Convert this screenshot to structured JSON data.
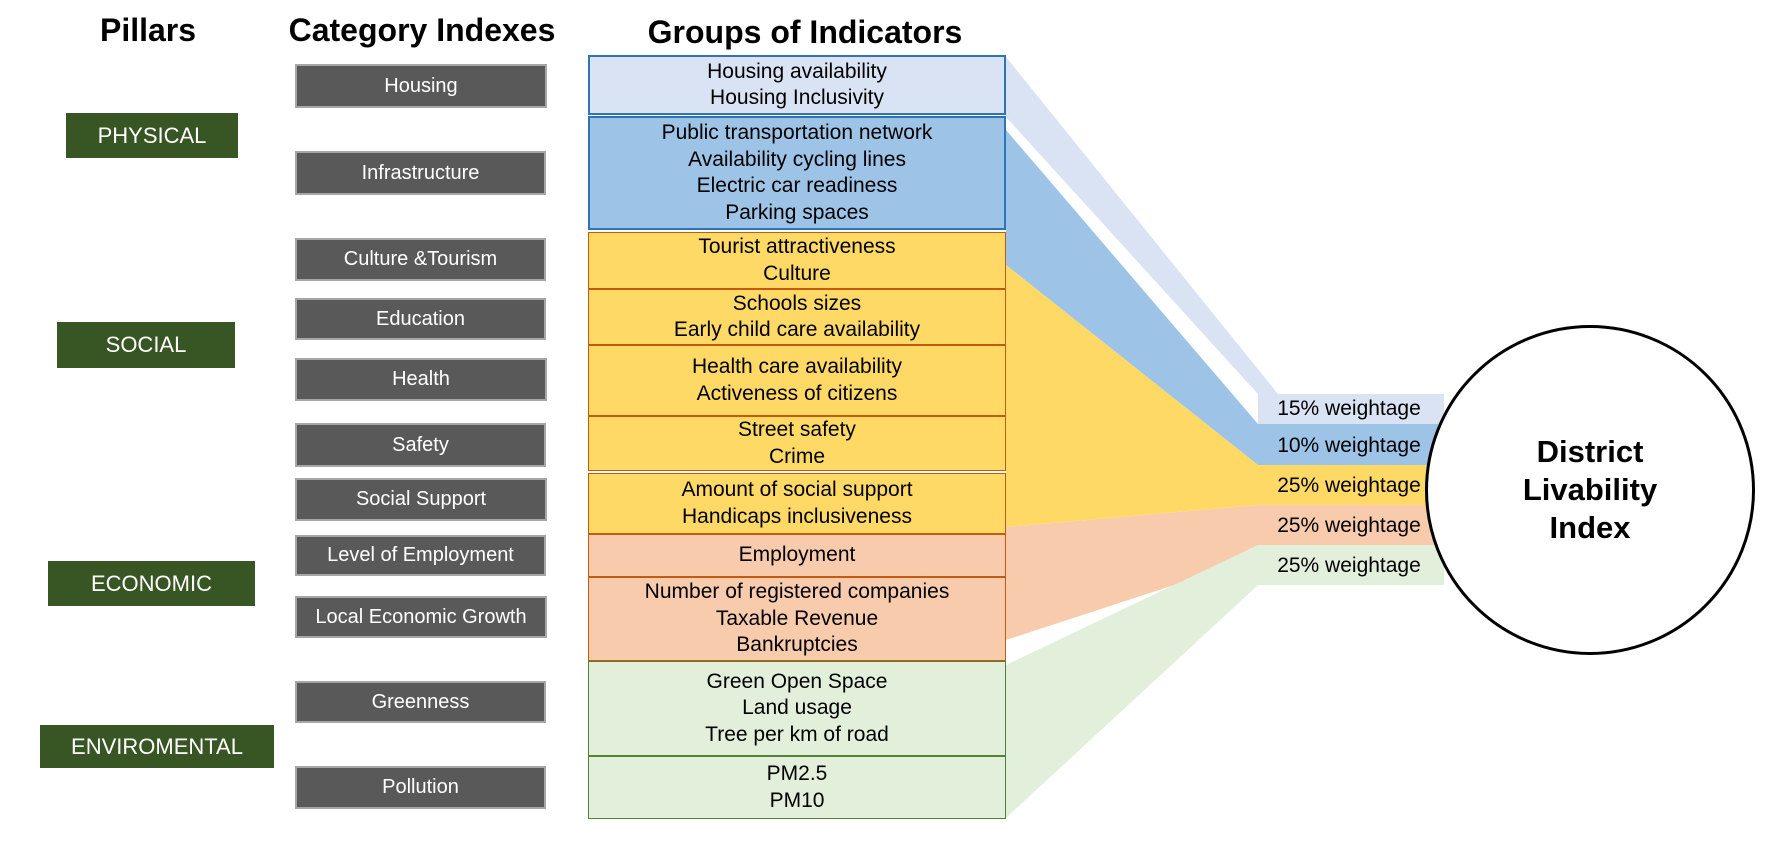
{
  "headers": {
    "pillars": "Pillars",
    "categories": "Category Indexes",
    "groups": "Groups of Indicators"
  },
  "pillars": [
    "PHYSICAL",
    "SOCIAL",
    "ECONOMIC",
    "ENVIROMENTAL"
  ],
  "categories": [
    "Housing",
    "Infrastructure",
    "Culture &Tourism",
    "Education",
    "Health",
    "Safety",
    "Social Support",
    "Level of Employment",
    "Local Economic Growth",
    "Greenness",
    "Pollution"
  ],
  "groups": [
    {
      "lines": [
        "Housing availability",
        "Housing Inclusivity"
      ]
    },
    {
      "lines": [
        "Public transportation network",
        "Availability cycling lines",
        "Electric car readiness",
        "Parking spaces"
      ]
    },
    {
      "lines": [
        "Tourist attractiveness",
        "Culture"
      ]
    },
    {
      "lines": [
        "Schools  sizes",
        "Early child care availability"
      ]
    },
    {
      "lines": [
        "Health  care availability",
        "Activeness of citizens"
      ]
    },
    {
      "lines": [
        "Street safety",
        "Crime"
      ]
    },
    {
      "lines": [
        "Amount of social support",
        "Handicaps inclusiveness"
      ]
    },
    {
      "lines": [
        "Employment"
      ]
    },
    {
      "lines": [
        "Number of registered companies",
        "Taxable Revenue",
        "Bankruptcies"
      ]
    },
    {
      "lines": [
        "Green Open Space",
        "Land usage",
        "Tree per km of road"
      ]
    },
    {
      "lines": [
        "PM2.5",
        "PM10"
      ]
    }
  ],
  "weightages": [
    "15% weightage",
    "10% weightage",
    "25% weightage",
    "25% weightage",
    "25% weightage"
  ],
  "index_label": "District\nLivability\nIndex",
  "colors": {
    "pillar": "#375623",
    "category": "#595959",
    "housing": "#dae3f3",
    "infrastructure": "#9dc3e6",
    "social": "#ffd966",
    "economic": "#f8cbad",
    "environmental": "#e2efda"
  }
}
